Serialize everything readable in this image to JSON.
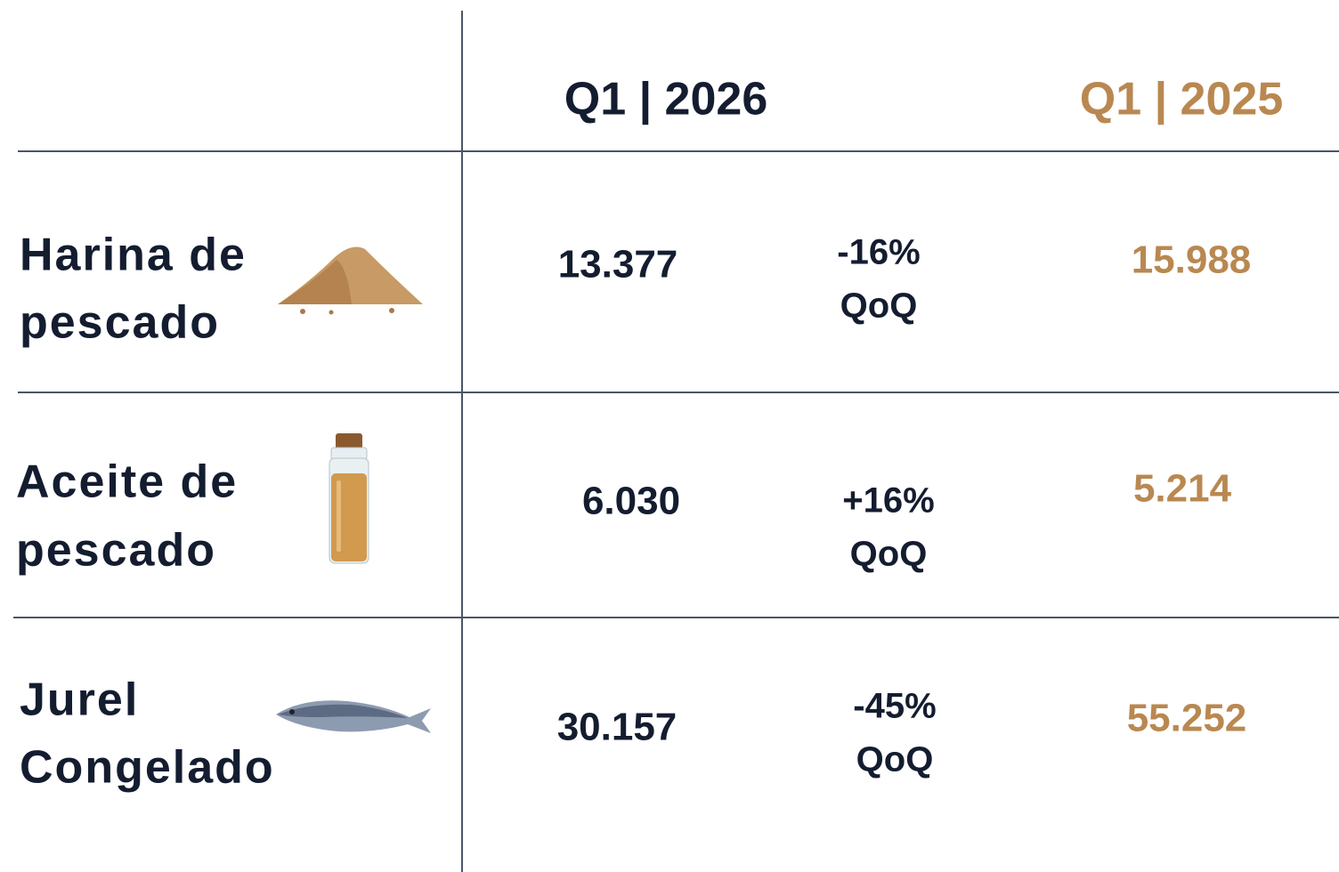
{
  "header": {
    "columns": [
      "Q1 | 2026",
      "Q1 | 2025"
    ]
  },
  "table": {
    "rows": [
      {
        "name": [
          "Harina de",
          "pescado"
        ],
        "current": "13.377",
        "change": "-16%",
        "change_unit": "QoQ",
        "previous": "15.988"
      },
      {
        "name": [
          "Aceite de",
          "pescado"
        ],
        "current": "6.030",
        "change": "+16%",
        "change_unit": "QoQ",
        "previous": "5.214"
      },
      {
        "name": [
          "Jurel",
          "Congelado"
        ],
        "current": "30.157",
        "change": "-45%",
        "change_unit": "QoQ",
        "previous": "55.252"
      }
    ]
  }
}
